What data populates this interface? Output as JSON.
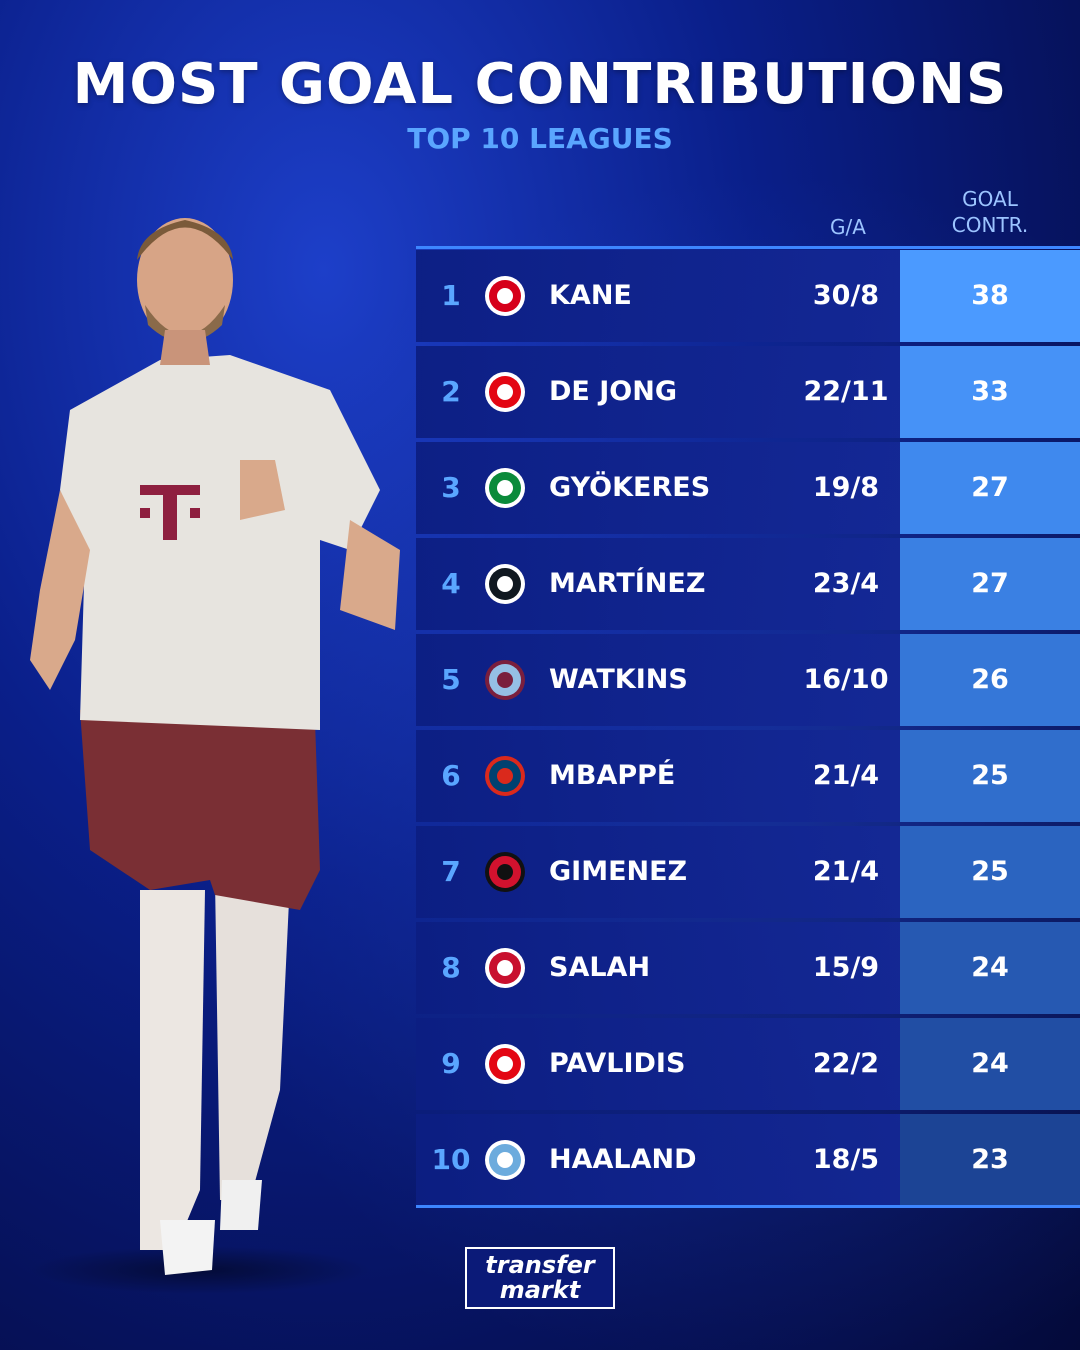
{
  "header": {
    "title": "MOST GOAL CONTRIBUTIONS",
    "subtitle": "TOP 10 LEAGUES"
  },
  "columns": {
    "ga": "G/A",
    "gc_line1": "GOAL",
    "gc_line2": "CONTR."
  },
  "colors": {
    "accent": "#3d86ff",
    "rank_text": "#5aa6ff"
  },
  "rows": [
    {
      "rank": "1",
      "club_icon": "bayern-munich-crest-icon",
      "name": "KANE",
      "ga": "30/8",
      "contr": "38",
      "score_color": "#4b9aff"
    },
    {
      "rank": "2",
      "club_icon": "psv-crest-icon",
      "name": "DE JONG",
      "ga": "22/11",
      "contr": "33",
      "score_color": "#4692f7"
    },
    {
      "rank": "3",
      "club_icon": "sporting-cp-crest-icon",
      "name": "GYÖKERES",
      "ga": "19/8",
      "contr": "27",
      "score_color": "#3f89ee"
    },
    {
      "rank": "4",
      "club_icon": "inter-milan-crest-icon",
      "name": "MARTÍNEZ",
      "ga": "23/4",
      "contr": "27",
      "score_color": "#3a80e3"
    },
    {
      "rank": "5",
      "club_icon": "aston-villa-crest-icon",
      "name": "WATKINS",
      "ga": "16/10",
      "contr": "26",
      "score_color": "#3577d8"
    },
    {
      "rank": "6",
      "club_icon": "psg-crest-icon",
      "name": "MBAPPÉ",
      "ga": "21/4",
      "contr": "25",
      "score_color": "#306ecc"
    },
    {
      "rank": "7",
      "club_icon": "feyenoord-crest-icon",
      "name": "GIMENEZ",
      "ga": "21/4",
      "contr": "25",
      "score_color": "#2b64c0"
    },
    {
      "rank": "8",
      "club_icon": "liverpool-crest-icon",
      "name": "SALAH",
      "ga": "15/9",
      "contr": "24",
      "score_color": "#2659b2"
    },
    {
      "rank": "9",
      "club_icon": "az-alkmaar-crest-icon",
      "name": "PAVLIDIS",
      "ga": "22/2",
      "contr": "24",
      "score_color": "#214ea4"
    },
    {
      "rank": "10",
      "club_icon": "manchester-city-crest-icon",
      "name": "HAALAND",
      "ga": "18/5",
      "contr": "23",
      "score_color": "#1c4495"
    }
  ],
  "logo": {
    "line1": "transfer",
    "line2": "markt"
  }
}
